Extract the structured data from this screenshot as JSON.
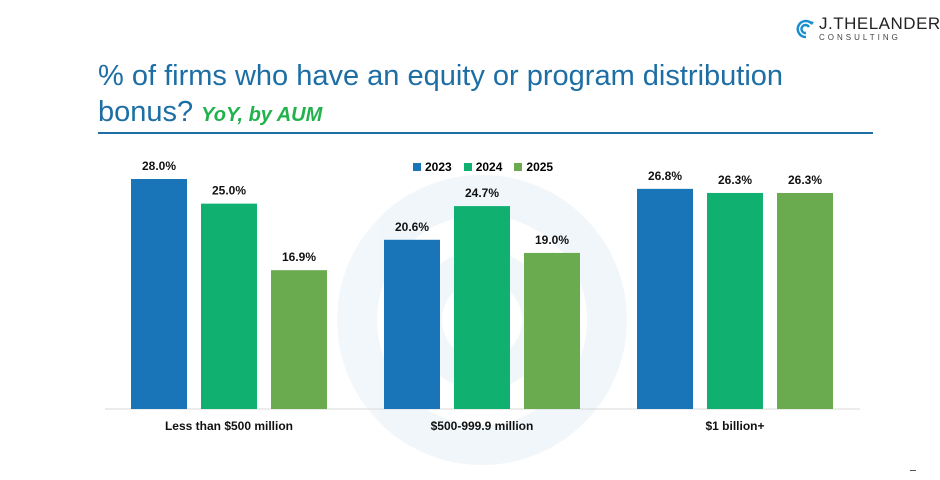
{
  "header": {
    "title": "% of firms who have an equity or program distribution bonus?",
    "subtitle": "YoY, by AUM",
    "logo_name": "J.THELANDER",
    "logo_sub": "CONSULTING"
  },
  "chart_data": {
    "type": "bar",
    "categories": [
      "Less than $500 million",
      "$500-999.9 million",
      "$1 billion+"
    ],
    "series": [
      {
        "name": "2023",
        "values": [
          28.0,
          20.6,
          26.8
        ],
        "color": "#1a74b8"
      },
      {
        "name": "2024",
        "values": [
          25.0,
          24.7,
          26.3
        ],
        "color": "#10b070"
      },
      {
        "name": "2025",
        "values": [
          16.9,
          19.0,
          26.3
        ],
        "color": "#6aab50"
      }
    ],
    "value_labels": [
      [
        "28.0%",
        "20.6%",
        "26.8%"
      ],
      [
        "25.0%",
        "24.7%",
        "26.3%"
      ],
      [
        "16.9%",
        "19.0%",
        "26.3%"
      ]
    ],
    "ylim": [
      0,
      28
    ],
    "grid": false,
    "legend": "top-center"
  }
}
